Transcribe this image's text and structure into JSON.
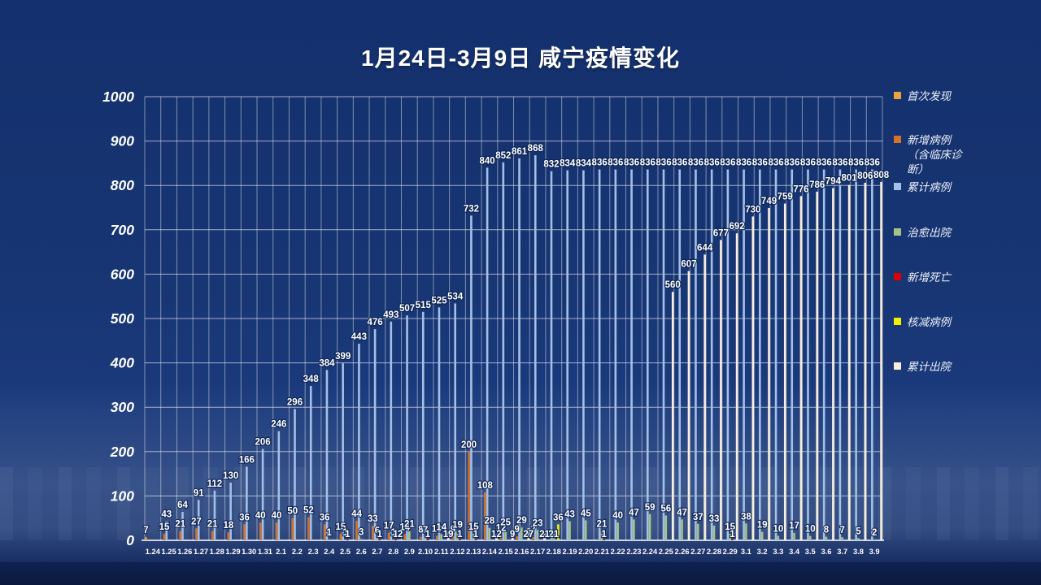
{
  "title": "1月24日-3月9日 咸宁疫情变化",
  "colors": {
    "background": "#16316e",
    "grid": "rgba(255,255,255,0.5)",
    "axis": "#ffffff",
    "label_text": "#ffffff",
    "first_found": "#eca33c",
    "new_cases": "#d3722b",
    "cum_cases": "#a3c1e6",
    "cured": "#a6c48a",
    "deaths": "#e00000",
    "reduced": "#f0f000",
    "cum_discharged": "#f7efdc"
  },
  "legend": {
    "position": "right",
    "items": [
      {
        "label": "首次发现",
        "color": "#eca33c"
      },
      {
        "label": "新增病例\n（含临床诊\n断）",
        "color": "#d3722b"
      },
      {
        "label": "累计病例",
        "color": "#a3c1e6"
      },
      {
        "label": "治愈出院",
        "color": "#a6c48a"
      },
      {
        "label": "新增死亡",
        "color": "#e00000"
      },
      {
        "label": "核减病例",
        "color": "#f0f000"
      },
      {
        "label": "累计出院",
        "color": "#f7efdc"
      }
    ]
  },
  "y_axis": {
    "ticks": [
      1000,
      900,
      800,
      700,
      600,
      500,
      400,
      300,
      200,
      100,
      0
    ],
    "min": 0,
    "max": 1000
  },
  "chart_data": {
    "type": "bar",
    "title": "1月24日-3月9日 咸宁疫情变化",
    "xlabel": "",
    "ylabel": "",
    "ylim": [
      0,
      1000
    ],
    "grid": "both",
    "legend_position": "right",
    "categories": [
      "1.24",
      "1.25",
      "1.26",
      "1.27",
      "1.28",
      "1.29",
      "1.30",
      "1.31",
      "2.1",
      "2.2",
      "2.3",
      "2.4",
      "2.5",
      "2.6",
      "2.7",
      "2.8",
      "2.9",
      "2.10",
      "2.11",
      "2.12",
      "2.13",
      "2.14",
      "2.15",
      "2.16",
      "2.17",
      "2.18",
      "2.19",
      "2.20",
      "2.21",
      "2.22",
      "2.23",
      "2.24",
      "2.25",
      "2.26",
      "2.27",
      "2.28",
      "2.29",
      "3.1",
      "3.2",
      "3.3",
      "3.4",
      "3.5",
      "3.6",
      "3.7",
      "3.8",
      "3.9"
    ],
    "series": [
      {
        "name": "首次发现",
        "key": "first_found",
        "values": [
          7,
          null,
          null,
          null,
          null,
          null,
          null,
          null,
          null,
          null,
          null,
          null,
          null,
          null,
          null,
          null,
          null,
          null,
          null,
          null,
          null,
          null,
          null,
          null,
          null,
          null,
          null,
          null,
          null,
          null,
          null,
          null,
          null,
          null,
          null,
          null,
          null,
          null,
          null,
          null,
          null,
          null,
          null,
          null,
          null,
          null
        ]
      },
      {
        "name": "新增病例（含临床诊断）",
        "key": "new_cases",
        "values": [
          null,
          15,
          21,
          27,
          21,
          18,
          36,
          40,
          40,
          50,
          52,
          36,
          15,
          44,
          33,
          17,
          14,
          8,
          10,
          9,
          200,
          108,
          12,
          9,
          7,
          null,
          null,
          null,
          null,
          null,
          null,
          null,
          null,
          null,
          null,
          null,
          null,
          null,
          null,
          null,
          null,
          null,
          null,
          null,
          null,
          null
        ]
      },
      {
        "name": "累计病例",
        "key": "cum_cases",
        "values": [
          null,
          43,
          64,
          91,
          112,
          130,
          166,
          206,
          246,
          296,
          348,
          384,
          399,
          443,
          476,
          493,
          507,
          515,
          525,
          534,
          732,
          840,
          852,
          861,
          868,
          832,
          834,
          834,
          836,
          836,
          836,
          836,
          836,
          836,
          836,
          836,
          836,
          836,
          836,
          836,
          836,
          836,
          836,
          836,
          836,
          836
        ]
      },
      {
        "name": "治愈出院",
        "key": "cured",
        "values": [
          null,
          null,
          null,
          null,
          null,
          null,
          null,
          null,
          null,
          null,
          null,
          1,
          1,
          3,
          6,
          1,
          21,
          7,
          14,
          19,
          15,
          28,
          25,
          29,
          23,
          21,
          43,
          45,
          21,
          40,
          47,
          59,
          56,
          47,
          37,
          33,
          15,
          38,
          19,
          10,
          17,
          10,
          8,
          7,
          5,
          2
        ]
      },
      {
        "name": "新增死亡",
        "key": "deaths",
        "values": [
          null,
          null,
          null,
          null,
          null,
          null,
          null,
          null,
          null,
          null,
          null,
          null,
          1,
          null,
          1,
          1,
          null,
          1,
          null,
          1,
          1,
          null,
          null,
          null,
          null,
          null,
          null,
          null,
          1,
          null,
          null,
          null,
          null,
          null,
          null,
          null,
          1,
          null,
          null,
          null,
          null,
          null,
          null,
          null,
          null,
          null
        ]
      },
      {
        "name": "核减病例",
        "key": "reduced",
        "values": [
          null,
          null,
          null,
          null,
          null,
          null,
          null,
          null,
          null,
          null,
          null,
          null,
          null,
          null,
          null,
          null,
          null,
          null,
          null,
          null,
          null,
          null,
          null,
          null,
          null,
          36,
          null,
          null,
          null,
          null,
          null,
          null,
          null,
          null,
          null,
          null,
          null,
          null,
          null,
          null,
          null,
          null,
          null,
          null,
          null,
          null
        ]
      },
      {
        "name": "累计出院",
        "key": "cum_discharged",
        "values": [
          null,
          null,
          null,
          null,
          null,
          null,
          null,
          null,
          null,
          null,
          null,
          null,
          null,
          null,
          null,
          2,
          null,
          null,
          19,
          null,
          null,
          12,
          9,
          27,
          21,
          null,
          null,
          null,
          null,
          null,
          null,
          null,
          560,
          607,
          644,
          677,
          692,
          730,
          749,
          759,
          776,
          786,
          794,
          801,
          806,
          808
        ]
      }
    ]
  }
}
